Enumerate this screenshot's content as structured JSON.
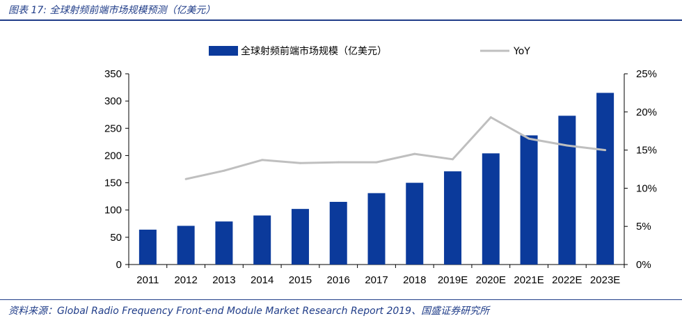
{
  "figure": {
    "title": "图表 17:  全球射频前端市场规模预测（亿美元）",
    "source": "资料来源：Global Radio Frequency Front-end Module Market Research Report 2019、国盛证券研究所"
  },
  "colors": {
    "bar": "#0b3a9b",
    "line": "#bfbfbf",
    "title": "#1f3c88"
  },
  "chart_data": {
    "type": "bar",
    "categories": [
      "2011",
      "2012",
      "2013",
      "2014",
      "2015",
      "2016",
      "2017",
      "2018",
      "2019E",
      "2020E",
      "2021E",
      "2022E",
      "2023E"
    ],
    "series": [
      {
        "name": "全球射频前端市场规模（亿美元）",
        "type": "bar",
        "axis": "left",
        "values": [
          64,
          71,
          79,
          90,
          102,
          115,
          131,
          150,
          171,
          204,
          237,
          273,
          315
        ]
      },
      {
        "name": "YoY",
        "type": "line",
        "axis": "right",
        "values": [
          null,
          11.2,
          12.3,
          13.7,
          13.3,
          13.4,
          13.4,
          14.5,
          13.8,
          19.3,
          16.5,
          15.6,
          15.0
        ]
      }
    ],
    "ylim": [
      0,
      350
    ],
    "y_ticks": [
      "0",
      "50",
      "100",
      "150",
      "200",
      "250",
      "300",
      "350"
    ],
    "y2lim": [
      0,
      25
    ],
    "y2_ticks": [
      "0%",
      "5%",
      "10%",
      "15%",
      "20%",
      "25%"
    ],
    "legend": "top-center",
    "grid": false
  }
}
